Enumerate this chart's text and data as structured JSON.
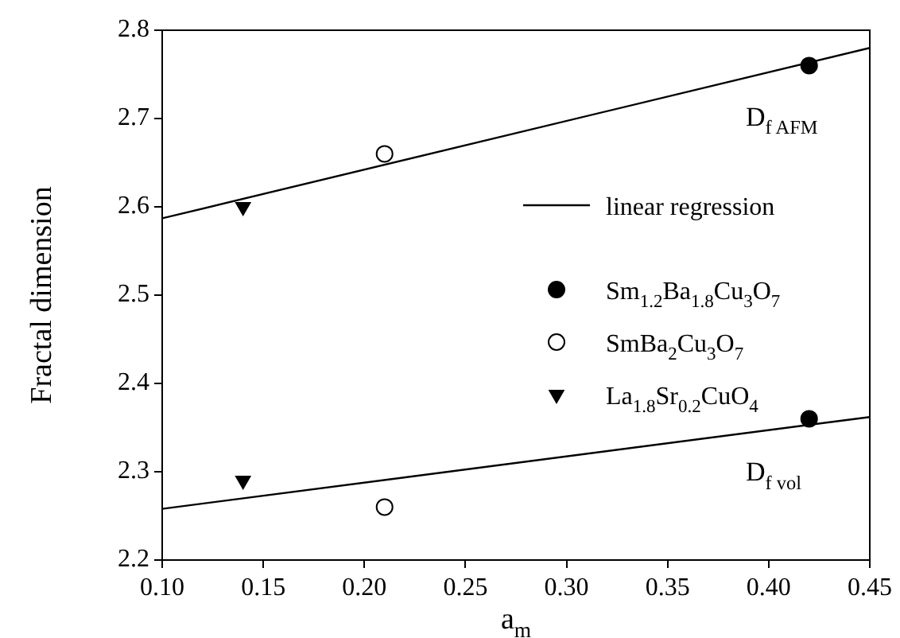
{
  "chart_data": {
    "type": "scatter",
    "xlabel": "a$_{m}$",
    "ylabel": "Fractal dimension",
    "xlim": [
      0.1,
      0.45
    ],
    "xticks": [
      {
        "value": 0.1,
        "label": "0.10"
      },
      {
        "value": 0.15,
        "label": "0.15"
      },
      {
        "value": 0.2,
        "label": "0.20"
      },
      {
        "value": 0.25,
        "label": "0.25"
      },
      {
        "value": 0.3,
        "label": "0.30"
      },
      {
        "value": 0.35,
        "label": "0.35"
      },
      {
        "value": 0.4,
        "label": "0.40"
      },
      {
        "value": 0.45,
        "label": "0.45"
      }
    ],
    "ylim": [
      2.2,
      2.8
    ],
    "yticks": [
      2.2,
      2.3,
      2.4,
      2.5,
      2.6,
      2.7,
      2.8
    ],
    "grid": false,
    "legend": "right",
    "annotations": [
      "D$_{f AFM}$",
      "D$_{f vol}$"
    ],
    "series": [
      {
        "name": "linear regression",
        "type": "line",
        "x": [
          0.1,
          0.45
        ],
        "values": [
          2.587,
          2.78
        ],
        "color": "#000000",
        "marker": "none"
      },
      {
        "type": "line",
        "x": [
          0.1,
          0.45
        ],
        "values": [
          2.258,
          2.362
        ],
        "color": "#000000",
        "marker": "none"
      },
      {
        "name": "Sm$_{1.2}$Ba$_{1.8}$Cu$_{3}$O$_{7}$",
        "type": "scatter",
        "x": [
          0.42,
          0.42
        ],
        "values": [
          2.76,
          2.36
        ],
        "color": "#000000",
        "marker": "circle"
      },
      {
        "name": "SmBa$_{2}$Cu$_{3}$O$_{7}$",
        "type": "scatter",
        "x": [
          0.21,
          0.21
        ],
        "values": [
          2.66,
          2.26
        ],
        "color": "#ffffff",
        "marker": "circle"
      },
      {
        "name": "La$_{1.8}$Sr$_{0.2}$CuO$_{4}$",
        "type": "scatter",
        "x": [
          0.14,
          0.14
        ],
        "values": [
          2.6,
          2.29
        ],
        "color": "#000000",
        "marker": "triangle"
      }
    ]
  }
}
